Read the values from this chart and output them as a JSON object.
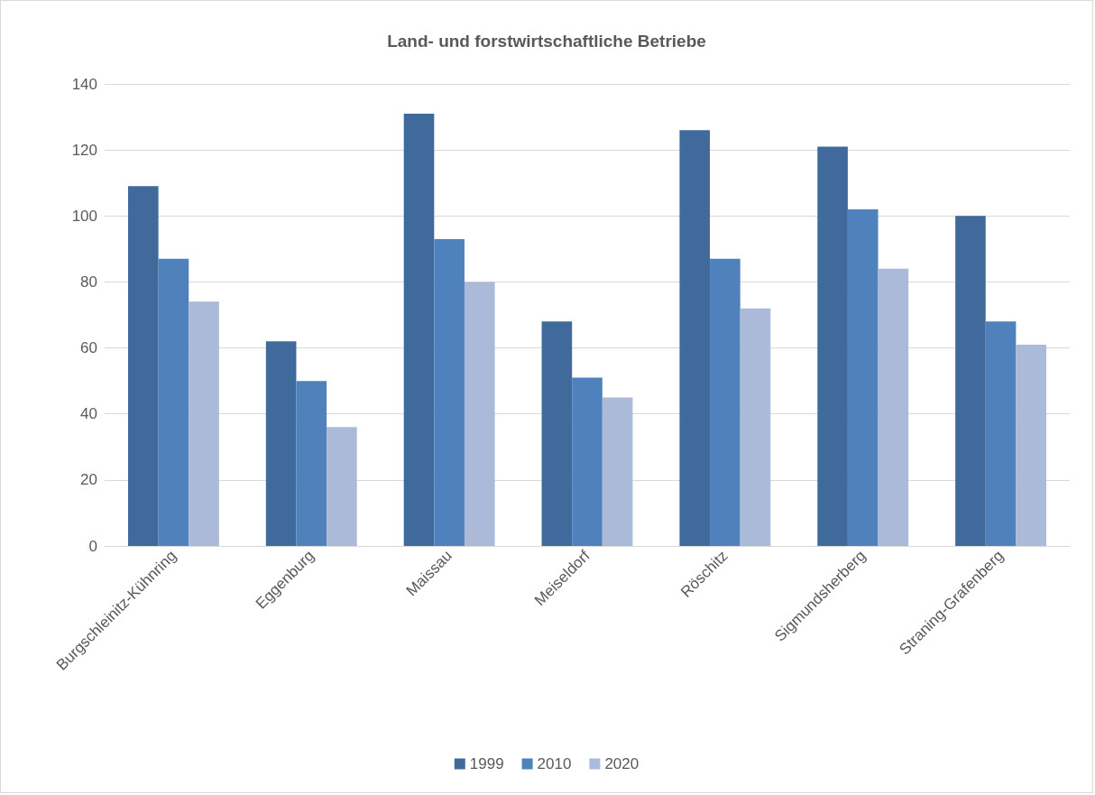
{
  "chart_data": {
    "type": "bar",
    "title": "Land- und forstwirtschaftliche Betriebe",
    "categories": [
      "Burgschleinitz-Kühnring",
      "Eggenburg",
      "Maissau",
      "Meiseldorf",
      "Röschitz",
      "Sigmundsherberg",
      "Straning-Grafenberg"
    ],
    "series": [
      {
        "name": "1999",
        "color": "#416a9c",
        "values": [
          109,
          62,
          131,
          68,
          126,
          121,
          100
        ]
      },
      {
        "name": "2010",
        "color": "#4f81bd",
        "values": [
          87,
          50,
          93,
          51,
          87,
          102,
          68
        ]
      },
      {
        "name": "2020",
        "color": "#abbad9",
        "values": [
          74,
          36,
          80,
          45,
          72,
          84,
          61
        ]
      }
    ],
    "ylim": [
      0,
      140
    ],
    "yticks": [
      0,
      20,
      40,
      60,
      80,
      100,
      120,
      140
    ],
    "grid": "y",
    "legend": "bottom"
  }
}
